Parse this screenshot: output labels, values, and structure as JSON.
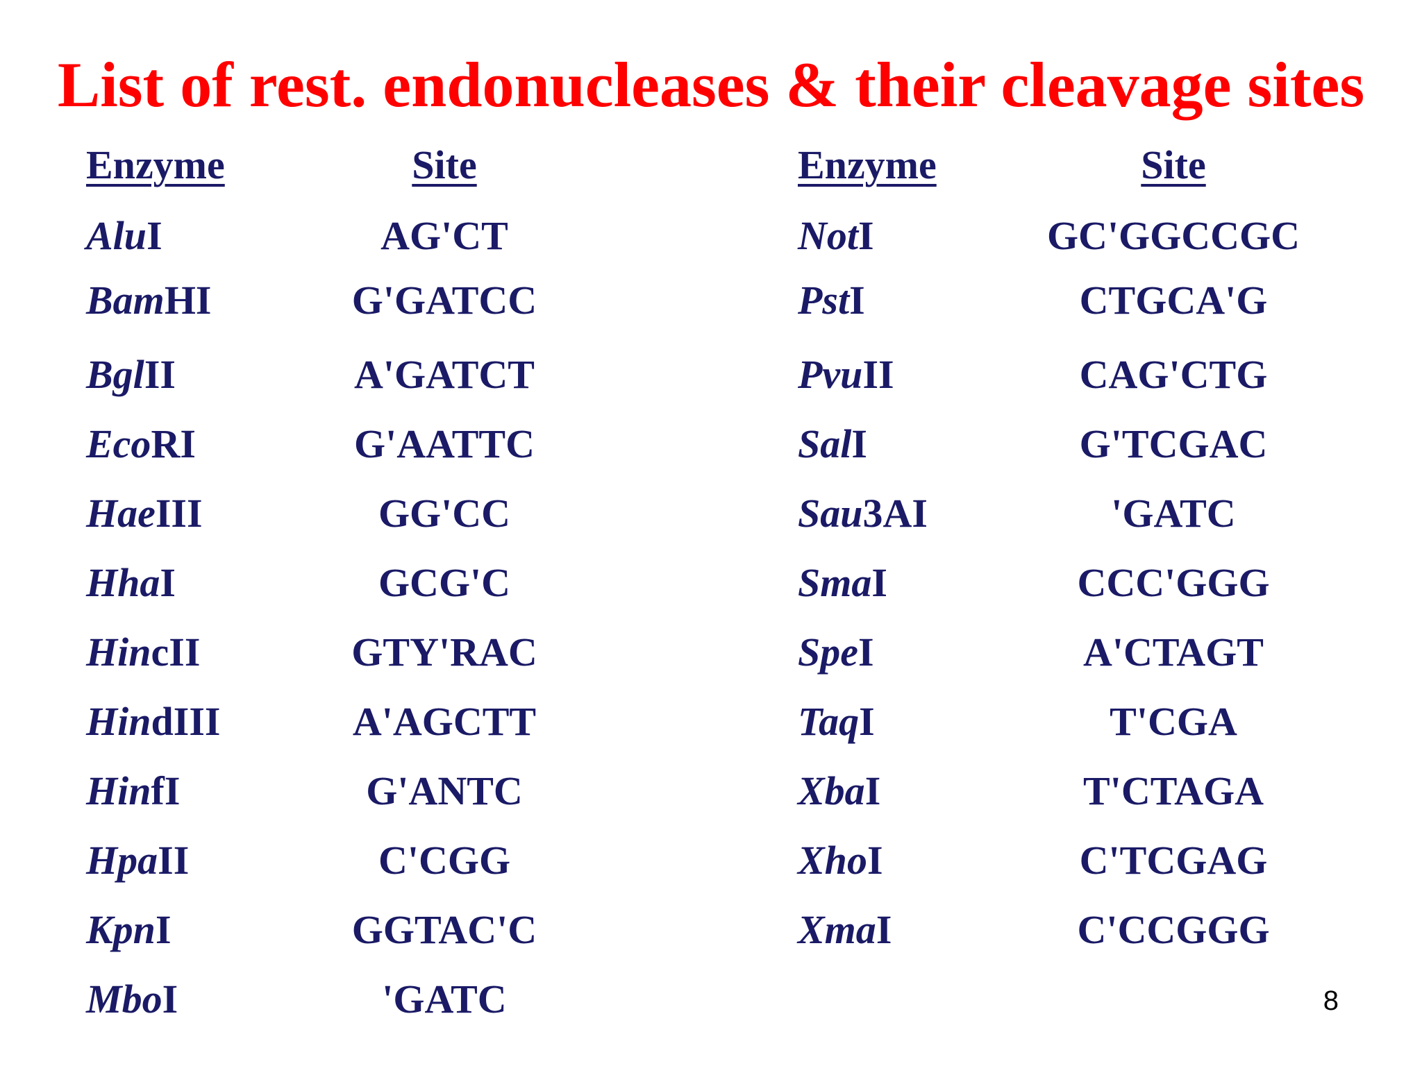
{
  "title": "List of rest. endonucleases & their cleavage sites",
  "headers": {
    "enzyme_left": "Enzyme",
    "site_left": "Site",
    "enzyme_right": "Enzyme",
    "site_right": "Site"
  },
  "left_rows": [
    {
      "genus": "Alu",
      "suffix": "I",
      "site": "AG'CT"
    },
    {
      "genus": "Bam",
      "suffix": "HI",
      "site": "G'GATCC"
    },
    {
      "genus": "Bgl",
      "suffix": "II",
      "site": "A'GATCT"
    },
    {
      "genus": "Eco",
      "suffix": "RI",
      "site": "G'AATTC"
    },
    {
      "genus": "Hae",
      "suffix": "III",
      "site": "GG'CC"
    },
    {
      "genus": "Hha",
      "suffix": "I",
      "site": "GCG'C"
    },
    {
      "genus": "Hin",
      "suffix": "cII",
      "site": "GTY'RAC"
    },
    {
      "genus": "Hin",
      "suffix": "dIII",
      "site": "A'AGCTT"
    },
    {
      "genus": "Hin",
      "suffix": "fI",
      "site": "G'ANTC"
    },
    {
      "genus": "Hpa",
      "suffix": "II",
      "site": "C'CGG"
    },
    {
      "genus": "Kpn",
      "suffix": "I",
      "site": "GGTAC'C"
    },
    {
      "genus": "Mbo",
      "suffix": "I",
      "site": "'GATC"
    }
  ],
  "right_rows": [
    {
      "genus": "Not",
      "suffix": "I",
      "site": "GC'GGCCGC"
    },
    {
      "genus": "Pst",
      "suffix": "I",
      "site": "CTGCA'G"
    },
    {
      "genus": "Pvu",
      "suffix": "II",
      "site": "CAG'CTG"
    },
    {
      "genus": "Sal",
      "suffix": "I",
      "site": "G'TCGAC"
    },
    {
      "genus": "Sau",
      "suffix": "3AI",
      "site": "'GATC"
    },
    {
      "genus": "Sma",
      "suffix": "I",
      "site": "CCC'GGG"
    },
    {
      "genus": "Spe",
      "suffix": "I",
      "site": "A'CTAGT"
    },
    {
      "genus": "Taq",
      "suffix": "I",
      "site": "T'CGA"
    },
    {
      "genus": "Xba",
      "suffix": "I",
      "site": "T'CTAGA"
    },
    {
      "genus": "Xho",
      "suffix": "I",
      "site": "C'TCGAG"
    },
    {
      "genus": "Xma",
      "suffix": "I",
      "site": "C'CCGGG"
    }
  ],
  "page_number": "8",
  "colors": {
    "title": "#ff0000",
    "text": "#1a1a66"
  }
}
